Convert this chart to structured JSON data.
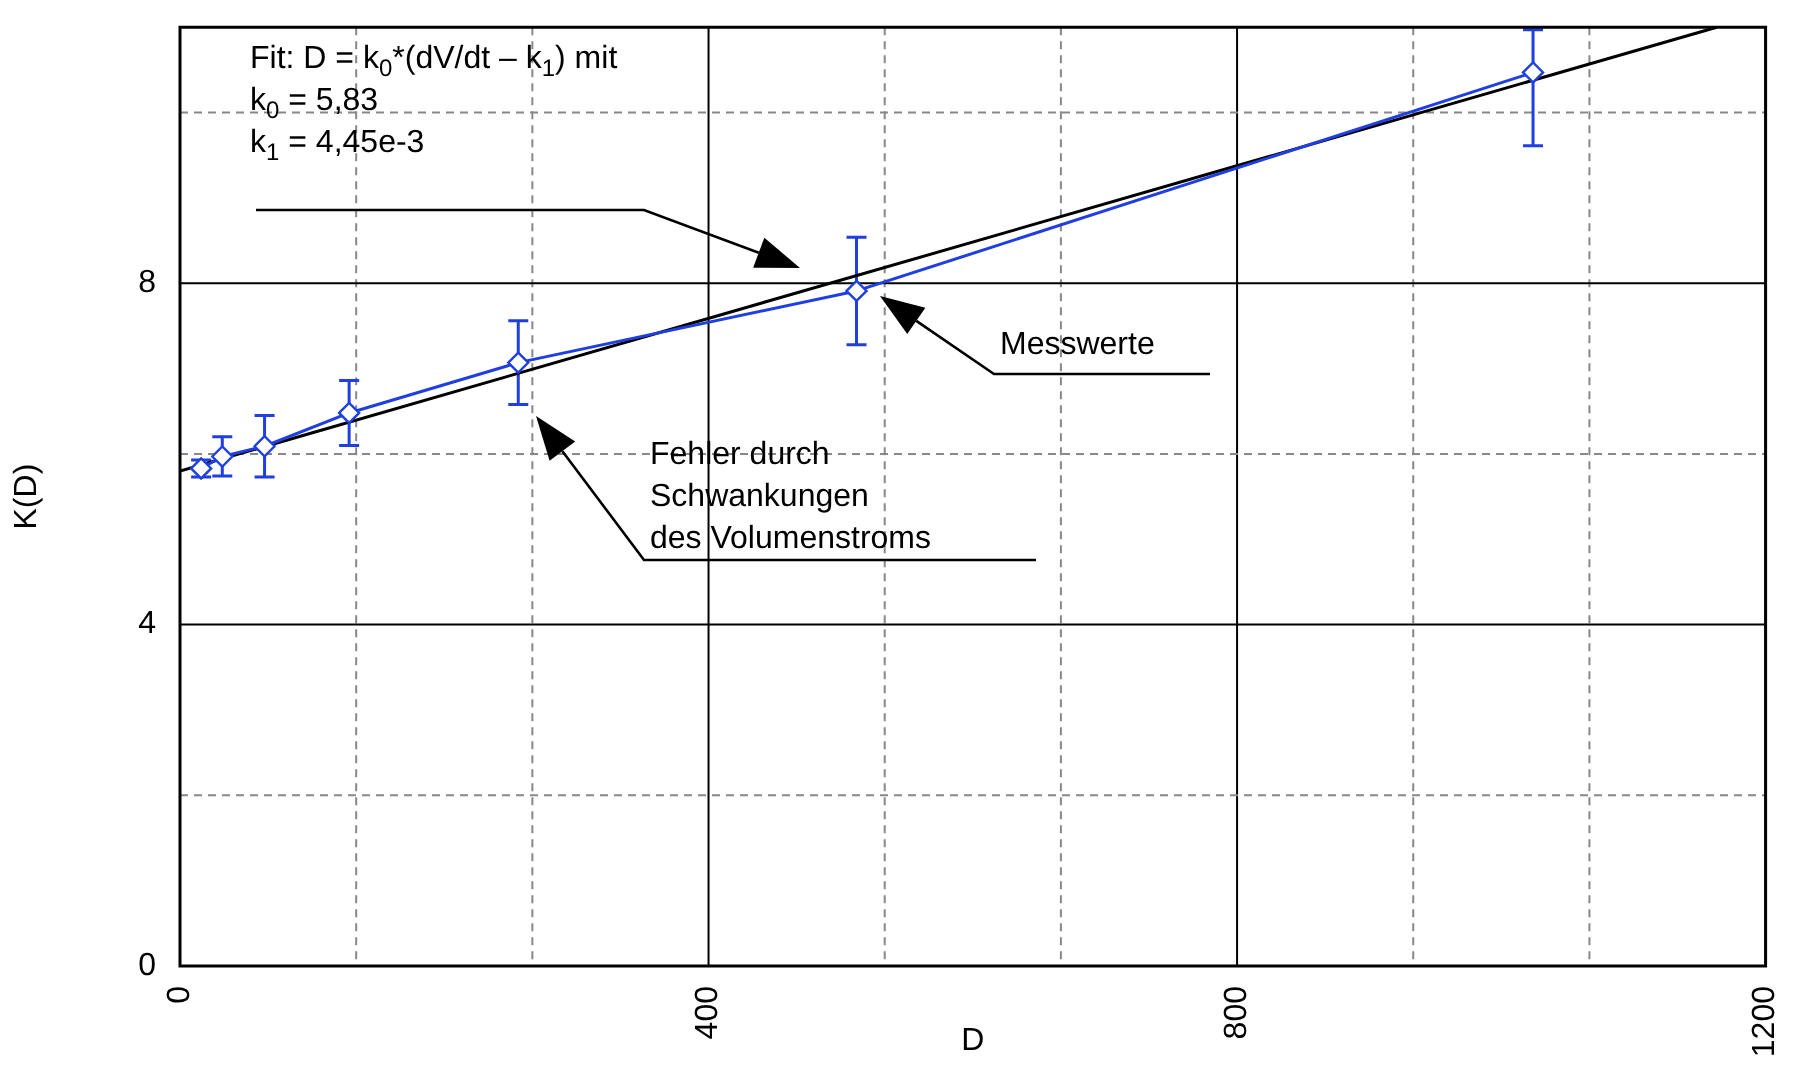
{
  "chart_data": {
    "type": "line",
    "xlabel": "D",
    "ylabel": "K(D)",
    "xlim": [
      0,
      1200
    ],
    "ylim": [
      0,
      11
    ],
    "xticks": [
      0,
      {
        "value": 133.33,
        "label": null
      },
      {
        "value": 266.67,
        "label": null
      },
      400,
      {
        "value": 533.33,
        "label": null
      },
      {
        "value": 666.67,
        "label": null
      },
      800,
      {
        "value": 933.33,
        "label": null
      },
      {
        "value": 1066.67,
        "label": null
      },
      1200
    ],
    "yticks": [
      0,
      {
        "value": 2,
        "label": null
      },
      4,
      {
        "value": 6,
        "label": null
      },
      8,
      {
        "value": 10,
        "label": null
      }
    ],
    "grid": true,
    "series": [
      {
        "type": "line",
        "color": "#1f3fe0",
        "marker": "diamond",
        "x": [
          16,
          32,
          64,
          128,
          256,
          512,
          1024
        ],
        "values": [
          5.83,
          5.97,
          6.09,
          6.48,
          7.07,
          7.91,
          10.47
        ],
        "errors": [
          0.1,
          0.23,
          0.36,
          0.38,
          0.49,
          0.63,
          [
            9.61,
            10.97
          ]
        ]
      },
      {
        "type": "line",
        "color": "#000000",
        "marker": "none",
        "x": [
          0,
          1163
        ],
        "values": [
          5.8,
          11
        ]
      }
    ],
    "annotations": [
      "Fit: D = k$_{0}$*(dV/dt – k$_{1}$) mit\nk$_{0}$ = 5,83\nk$_{1}$ = 4,45e-3",
      "Messwerte",
      "Fehler durch\nSchwankungen\ndes Volumenstroms"
    ]
  }
}
